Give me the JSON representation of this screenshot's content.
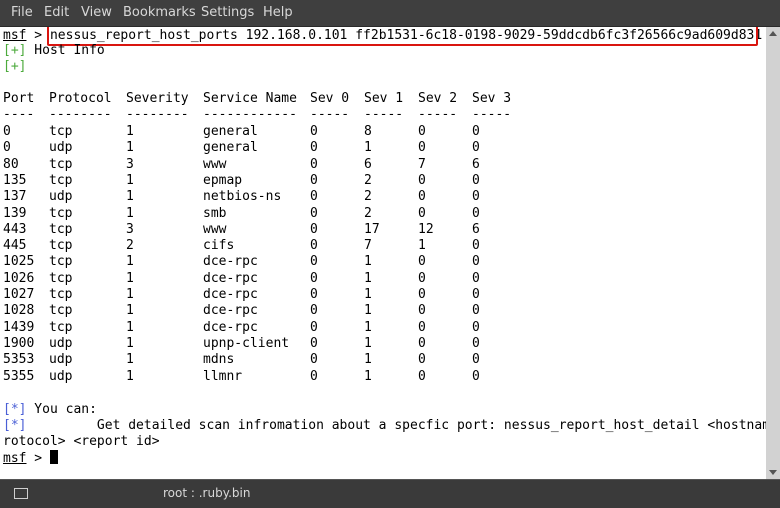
{
  "menu": [
    "File",
    "Edit",
    "View",
    "Bookmarks",
    "Settings",
    "Help"
  ],
  "prompt": {
    "name": "msf",
    "symbol": " > "
  },
  "command": "nessus_report_host_ports 192.168.0.101 ff2b1531-6c18-0198-9029-59ddcdb6fc3f26566c9ad609d831",
  "host_info": {
    "marker": "[+]",
    "text": " Host Info",
    "marker2": "[+]"
  },
  "table": {
    "headers": [
      "Port",
      "Protocol",
      "Severity",
      "Service Name",
      "Sev 0",
      "Sev 1",
      "Sev 2",
      "Sev 3"
    ],
    "separators": [
      "----",
      "--------",
      "--------",
      "------------",
      "-----",
      "-----",
      "-----",
      "-----"
    ],
    "rows": [
      [
        "0",
        "tcp",
        "1",
        "general",
        "0",
        "8",
        "0",
        "0"
      ],
      [
        "0",
        "udp",
        "1",
        "general",
        "0",
        "1",
        "0",
        "0"
      ],
      [
        "80",
        "tcp",
        "3",
        "www",
        "0",
        "6",
        "7",
        "6"
      ],
      [
        "135",
        "tcp",
        "1",
        "epmap",
        "0",
        "2",
        "0",
        "0"
      ],
      [
        "137",
        "udp",
        "1",
        "netbios-ns",
        "0",
        "2",
        "0",
        "0"
      ],
      [
        "139",
        "tcp",
        "1",
        "smb",
        "0",
        "2",
        "0",
        "0"
      ],
      [
        "443",
        "tcp",
        "3",
        "www",
        "0",
        "17",
        "12",
        "6"
      ],
      [
        "445",
        "tcp",
        "2",
        "cifs",
        "0",
        "7",
        "1",
        "0"
      ],
      [
        "1025",
        "tcp",
        "1",
        "dce-rpc",
        "0",
        "1",
        "0",
        "0"
      ],
      [
        "1026",
        "tcp",
        "1",
        "dce-rpc",
        "0",
        "1",
        "0",
        "0"
      ],
      [
        "1027",
        "tcp",
        "1",
        "dce-rpc",
        "0",
        "1",
        "0",
        "0"
      ],
      [
        "1028",
        "tcp",
        "1",
        "dce-rpc",
        "0",
        "1",
        "0",
        "0"
      ],
      [
        "1439",
        "tcp",
        "1",
        "dce-rpc",
        "0",
        "1",
        "0",
        "0"
      ],
      [
        "1900",
        "udp",
        "1",
        "upnp-client",
        "0",
        "1",
        "0",
        "0"
      ],
      [
        "5353",
        "udp",
        "1",
        "mdns",
        "0",
        "1",
        "0",
        "0"
      ],
      [
        "5355",
        "udp",
        "1",
        "llmnr",
        "0",
        "1",
        "0",
        "0"
      ]
    ]
  },
  "help": {
    "marker1": "[*]",
    "you_can": " You can:",
    "marker2": "[*]",
    "line1": "         Get detailed scan infromation about a specfic port: nessus_report_host_detail <hostnam",
    "line2": "rotocol> <report id>"
  },
  "taskbar": {
    "title": "root : .ruby.bin",
    "icon": "terminal-icon"
  },
  "colors": {
    "highlight": "#d9150f",
    "green_marker": "#4caa3c",
    "blue_marker": "#4a5fd6"
  }
}
